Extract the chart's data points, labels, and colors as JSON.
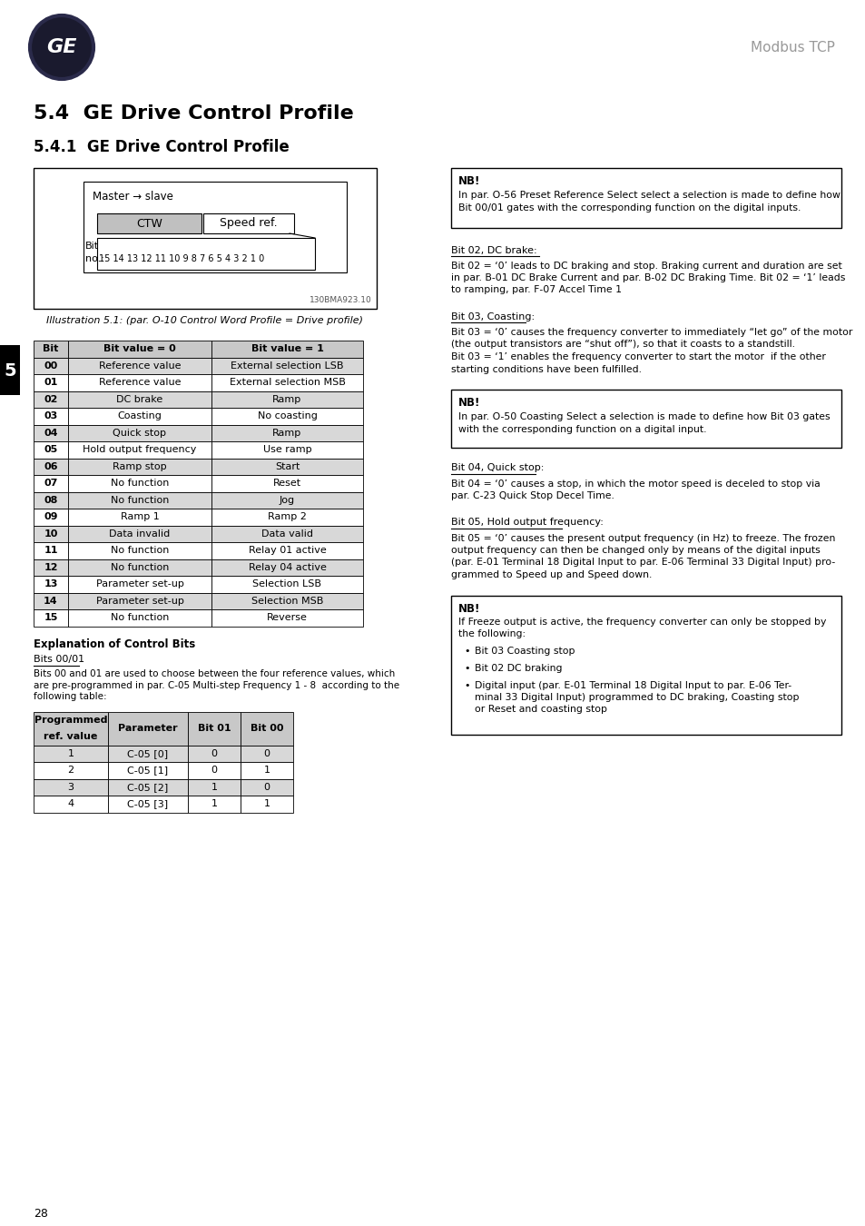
{
  "page_title": "Modbus TCP",
  "section_title": "5.4  GE Drive Control Profile",
  "subsection_title": "5.4.1  GE Drive Control Profile",
  "illustration_label": "Illustration 5.1: (par. O-10 Control Word Profile = Drive profile)",
  "illustration_code": "130BMA923.10",
  "master_slave_label": "Master → slave",
  "ctw_label": "CTW",
  "speed_ref_label": "Speed ref.",
  "main_table_headers": [
    "Bit",
    "Bit value = 0",
    "Bit value = 1"
  ],
  "main_table_rows": [
    [
      "00",
      "Reference value",
      "External selection LSB",
      true
    ],
    [
      "01",
      "Reference value",
      "External selection MSB",
      false
    ],
    [
      "02",
      "DC brake",
      "Ramp",
      true
    ],
    [
      "03",
      "Coasting",
      "No coasting",
      false
    ],
    [
      "04",
      "Quick stop",
      "Ramp",
      true
    ],
    [
      "05",
      "Hold output frequency",
      "Use ramp",
      false
    ],
    [
      "06",
      "Ramp stop",
      "Start",
      true
    ],
    [
      "07",
      "No function",
      "Reset",
      false
    ],
    [
      "08",
      "No function",
      "Jog",
      true
    ],
    [
      "09",
      "Ramp 1",
      "Ramp 2",
      false
    ],
    [
      "10",
      "Data invalid",
      "Data valid",
      true
    ],
    [
      "11",
      "No function",
      "Relay 01 active",
      false
    ],
    [
      "12",
      "No function",
      "Relay 04 active",
      true
    ],
    [
      "13",
      "Parameter set-up",
      "Selection LSB",
      false
    ],
    [
      "14",
      "Parameter set-up",
      "Selection MSB",
      true
    ],
    [
      "15",
      "No function",
      "Reverse",
      false
    ]
  ],
  "explanation_title": "Explanation of Control Bits",
  "bits_0001_title": "Bits 00/01",
  "bits_0001_lines": [
    "Bits 00 and 01 are used to choose between the four reference values, which",
    "are pre-programmed in par. C-05 Multi-step Frequency 1 - 8  according to the",
    "following table:"
  ],
  "prog_table_col1_header": "Programmed",
  "prog_table_col1_sub": "ref. value",
  "prog_table_headers": [
    "Programmed",
    "Parameter",
    "Bit 01",
    "Bit 00"
  ],
  "prog_table_rows": [
    [
      "1",
      "C-05 [0]",
      "0",
      "0",
      true
    ],
    [
      "2",
      "C-05 [1]",
      "0",
      "1",
      false
    ],
    [
      "3",
      "C-05 [2]",
      "1",
      "0",
      true
    ],
    [
      "4",
      "C-05 [3]",
      "1",
      "1",
      false
    ]
  ],
  "nb1_title": "NB!",
  "nb1_lines": [
    "In par. O-56 Preset Reference Select select a selection is made to define how",
    "Bit 00/01 gates with the corresponding function on the digital inputs."
  ],
  "bit02_title": "Bit 02, DC brake:",
  "bit02_lines": [
    "Bit 02 = ‘0’ leads to DC braking and stop. Braking current and duration are set",
    "in par. B-01 DC Brake Current and par. B-02 DC Braking Time. Bit 02 = ‘1’ leads",
    "to ramping, par. F-07 Accel Time 1"
  ],
  "bit03_title": "Bit 03, Coasting:",
  "bit03_lines": [
    "Bit 03 = ‘0’ causes the frequency converter to immediately “let go” of the motor",
    "(the output transistors are “shut off”), so that it coasts to a standstill.",
    "Bit 03 = ‘1’ enables the frequency converter to start the motor  if the other",
    "starting conditions have been fulfilled."
  ],
  "nb2_title": "NB!",
  "nb2_lines": [
    "In par. O-50 Coasting Select a selection is made to define how Bit 03 gates",
    "with the corresponding function on a digital input."
  ],
  "bit04_title": "Bit 04, Quick stop:",
  "bit04_lines": [
    "Bit 04 = ‘0’ causes a stop, in which the motor speed is deceled to stop via",
    "par. C-23 Quick Stop Decel Time."
  ],
  "bit05_title": "Bit 05, Hold output frequency:",
  "bit05_lines": [
    "Bit 05 = ‘0’ causes the present output frequency (in Hz) to freeze. The frozen",
    "output frequency can then be changed only by means of the digital inputs",
    "(par. E-01 Terminal 18 Digital Input to par. E-06 Terminal 33 Digital Input) pro-",
    "grammed to Speed up and Speed down."
  ],
  "nb3_title": "NB!",
  "nb3_line1": "If Freeze output is active, the frequency converter can only be stopped by",
  "nb3_line2": "the following:",
  "nb3_bullets": [
    [
      "Bit 03 Coasting stop"
    ],
    [
      "Bit 02 DC braking"
    ],
    [
      "Digital input (par. E-01 Terminal 18 Digital Input to par. E-06 Ter-",
      "minal 33 Digital Input) programmed to DC braking, Coasting stop",
      "or Reset and coasting stop"
    ]
  ],
  "page_number": "28",
  "section_number": "5",
  "header_bg": "#c8c8c8",
  "shaded_bg": "#d8d8d8"
}
